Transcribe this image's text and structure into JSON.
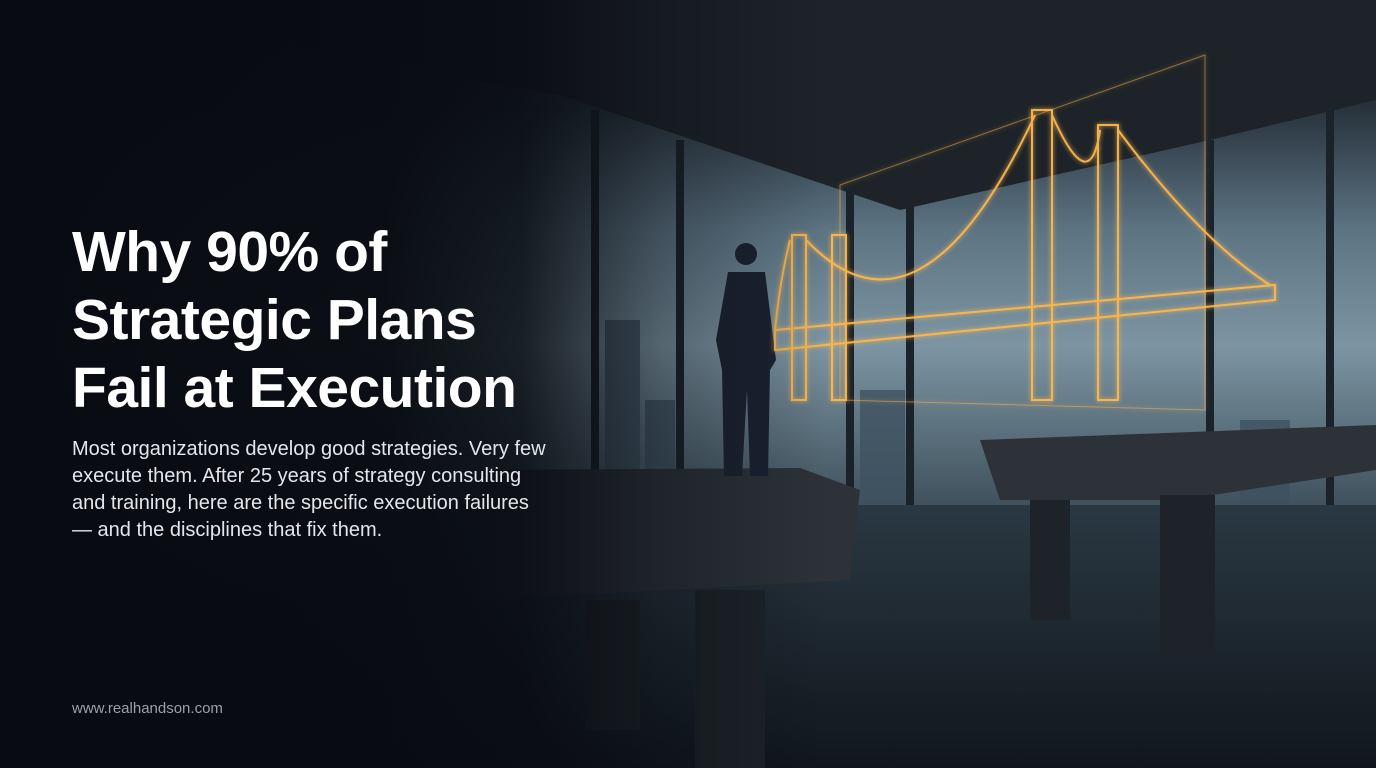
{
  "hero": {
    "title_lines": [
      "Why 90% of",
      "Strategic Plans",
      "Fail at Execution"
    ],
    "description": "Most organizations develop good strategies. Very few execute them. After 25 years of strategy consulting and training, here are the specific execution failures — and the disciplines that fix them.",
    "website": "www.realhandson.com"
  },
  "colors": {
    "background": "#0a0d13",
    "title": "#ffffff",
    "wireframe_glow": "#ffb84d",
    "url": "#9aa1a8"
  }
}
